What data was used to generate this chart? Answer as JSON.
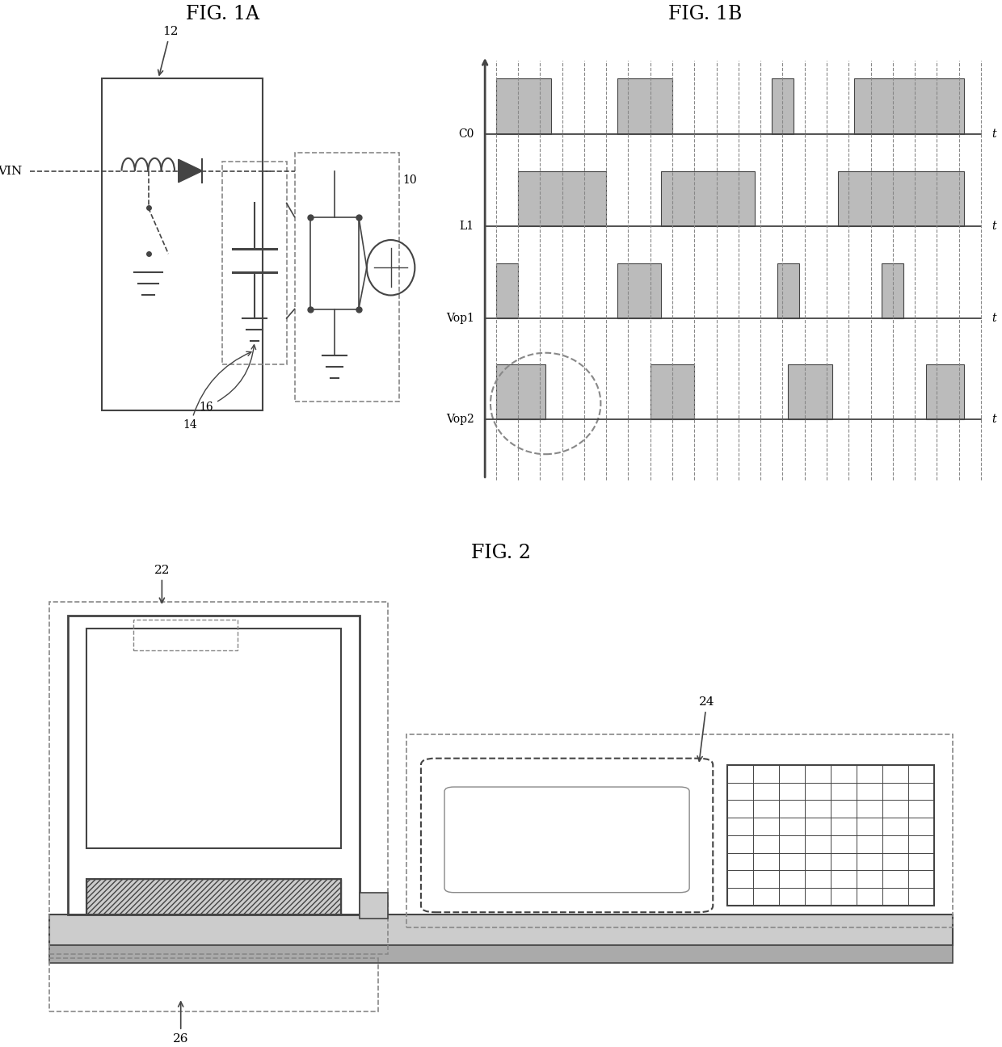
{
  "fig_title_1a": "FIG. 1A",
  "fig_title_1b": "FIG. 1B",
  "fig_title_2": "FIG. 2",
  "label_12": "12",
  "label_10": "10",
  "label_14": "14",
  "label_16": "16",
  "label_VIN": "VIN",
  "label_C0": "C0",
  "label_L1": "L1",
  "label_Vop1": "Vop1",
  "label_Vop2": "Vop2",
  "label_t": "t",
  "label_22": "22",
  "label_24": "24",
  "label_26": "26",
  "bg_color": "#ffffff",
  "line_color": "#444444",
  "dashed_color": "#888888",
  "pulse_fill": "#bbbbbb",
  "gray_fill": "#cccccc"
}
